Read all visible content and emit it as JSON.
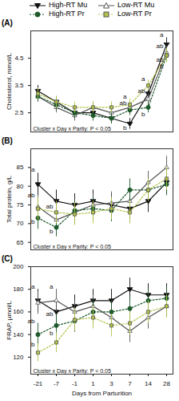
{
  "chart_data": [
    {
      "type": "line",
      "title": "(A)",
      "y_label": "Cholesterol, mmol/L",
      "x_label": null,
      "categories": [
        "-21",
        "-7",
        "-1",
        "1",
        "3",
        "7",
        "14",
        "28"
      ],
      "ylim": [
        1.8,
        5.5
      ],
      "yticks": [
        2.5,
        3.5,
        4.5
      ],
      "tick_labels": "y",
      "legend": "top",
      "caption": "Cluster x Day x Parity: P < 0.05",
      "series": [
        {
          "name": "High-RT Mu",
          "color": "#111111",
          "marker": "triangle-down",
          "line_style": "solid",
          "values": [
            3.3,
            2.9,
            2.5,
            2.5,
            2.3,
            2.1,
            3.2,
            5.0
          ],
          "errors": [
            0.2,
            0.2,
            0.2,
            0.2,
            0.2,
            0.2,
            0.2,
            0.25
          ]
        },
        {
          "name": "Low-RT Mu",
          "color": "#555555",
          "marker": "triangle-open",
          "line_style": "solid",
          "values": [
            3.1,
            2.7,
            2.4,
            2.7,
            2.5,
            2.7,
            3.0,
            4.7
          ],
          "errors": [
            0.2,
            0.2,
            0.2,
            0.2,
            0.2,
            0.2,
            0.2,
            0.25
          ]
        },
        {
          "name": "High-RT Pr",
          "color": "#1e5a2c",
          "marker": "circle",
          "line_style": "dotted",
          "values": [
            3.1,
            2.8,
            2.5,
            2.4,
            2.3,
            2.6,
            2.7,
            4.6
          ],
          "errors": [
            0.2,
            0.2,
            0.2,
            0.2,
            0.2,
            0.2,
            0.2,
            0.25
          ]
        },
        {
          "name": "Low-RT Pr",
          "color": "#b3c24a",
          "marker": "square",
          "line_style": "dotted",
          "values": [
            3.2,
            2.9,
            2.7,
            2.7,
            2.7,
            2.8,
            3.5,
            4.6
          ],
          "errors": [
            0.2,
            0.2,
            0.2,
            0.2,
            0.2,
            0.2,
            0.2,
            0.25
          ]
        }
      ],
      "annotations": [
        {
          "x": "7",
          "y": 3.1,
          "text": "a"
        },
        {
          "x": "7",
          "y": 2.85,
          "text": "ab"
        },
        {
          "x": "7",
          "y": 1.95,
          "text": "b"
        },
        {
          "x": "14",
          "y": 3.75,
          "text": "a"
        },
        {
          "x": "14",
          "y": 3.3,
          "text": "ab"
        },
        {
          "x": "14",
          "y": 2.45,
          "text": "b"
        },
        {
          "x": "28",
          "y": 5.35,
          "text": "a"
        },
        {
          "x": "28",
          "y": 4.95,
          "text": "ab"
        },
        {
          "x": "28",
          "y": 4.45,
          "text": "ab"
        },
        {
          "x": "28",
          "y": 4.2,
          "text": "b"
        }
      ]
    },
    {
      "type": "line",
      "title": "(B)",
      "y_label": "Total protein, g/L",
      "x_label": null,
      "categories": [
        "-21",
        "-7",
        "-1",
        "1",
        "3",
        "7",
        "14",
        "28"
      ],
      "ylim": [
        63,
        90
      ],
      "yticks": [
        65,
        70,
        75,
        80,
        85
      ],
      "tick_labels": "y",
      "caption": "Cluster x Day x Parity: P < 0.05",
      "series": [
        {
          "name": "High-RT Mu",
          "color": "#111111",
          "marker": "triangle-down",
          "line_style": "solid",
          "values": [
            80.5,
            76,
            75,
            76,
            75,
            74,
            76,
            81
          ],
          "errors": [
            3,
            3,
            3,
            3,
            3,
            3,
            3,
            3
          ]
        },
        {
          "name": "Low-RT Mu",
          "color": "#555555",
          "marker": "triangle-open",
          "line_style": "solid",
          "values": [
            74.5,
            71,
            73,
            75,
            75.5,
            76,
            81,
            85
          ],
          "errors": [
            3,
            3,
            3,
            3,
            3,
            3,
            3,
            3
          ]
        },
        {
          "name": "High-RT Pr",
          "color": "#1e5a2c",
          "marker": "circle",
          "line_style": "dotted",
          "values": [
            71.5,
            69,
            73.5,
            74,
            73.5,
            79,
            79,
            80.5
          ],
          "errors": [
            3,
            2.5,
            3,
            3,
            3,
            3,
            3,
            3
          ]
        },
        {
          "name": "Low-RT Pr",
          "color": "#b3c24a",
          "marker": "square",
          "line_style": "dotted",
          "values": [
            74,
            73,
            72.5,
            73,
            74,
            73,
            79,
            82
          ],
          "errors": [
            3,
            3,
            3,
            3,
            3,
            3,
            3,
            3
          ]
        }
      ],
      "annotations": [
        {
          "x": "-21",
          "y": 84.5,
          "text": "a"
        },
        {
          "x": "-21",
          "y": 77.5,
          "text": "ab"
        },
        {
          "x": "-21",
          "y": 70.5,
          "text": "b"
        },
        {
          "x": "-7",
          "y": 74.5,
          "text": "ab"
        },
        {
          "x": "-7",
          "y": 68,
          "text": "b"
        }
      ]
    },
    {
      "type": "line",
      "title": "(C)",
      "y_label": "FRAP, µmol/L",
      "x_label": "Days from Parturition",
      "categories": [
        "-21",
        "-7",
        "-1",
        "1",
        "3",
        "7",
        "14",
        "28"
      ],
      "ylim": [
        105,
        200
      ],
      "yticks": [
        120,
        140,
        160,
        180,
        200
      ],
      "caption": "Cluster x Day x Parity: P < 0.05",
      "series": [
        {
          "name": "High-RT Mu",
          "color": "#111111",
          "marker": "triangle-down",
          "line_style": "solid",
          "values": [
            170,
            160,
            165,
            170,
            170,
            180,
            175,
            175
          ],
          "errors": [
            10,
            10,
            10,
            10,
            10,
            10,
            10,
            10
          ]
        },
        {
          "name": "Low-RT Mu",
          "color": "#555555",
          "marker": "triangle-open",
          "line_style": "solid",
          "values": [
            168,
            170,
            160,
            165,
            155,
            143,
            155,
            165
          ],
          "errors": [
            10,
            10,
            10,
            10,
            10,
            10,
            10,
            10
          ]
        },
        {
          "name": "High-RT Pr",
          "color": "#1e5a2c",
          "marker": "circle",
          "line_style": "dotted",
          "values": [
            140,
            148,
            152,
            160,
            160,
            163,
            170,
            172
          ],
          "errors": [
            10,
            10,
            10,
            10,
            10,
            10,
            10,
            10
          ]
        },
        {
          "name": "Low-RT Pr",
          "color": "#b3c24a",
          "marker": "square",
          "line_style": "dotted",
          "values": [
            124,
            133,
            153,
            155,
            148,
            150,
            160,
            165
          ],
          "errors": [
            8,
            9,
            10,
            10,
            10,
            10,
            10,
            10
          ]
        }
      ],
      "annotations": [
        {
          "x": "-21",
          "y": 182,
          "text": "a"
        },
        {
          "x": "-21",
          "y": 152,
          "text": "ab"
        },
        {
          "x": "-21",
          "y": 131,
          "text": "b"
        },
        {
          "x": "-7",
          "y": 182,
          "text": "a"
        },
        {
          "x": "-7",
          "y": 158,
          "text": "ab"
        },
        {
          "x": "-7",
          "y": 141,
          "text": "b"
        }
      ]
    }
  ]
}
